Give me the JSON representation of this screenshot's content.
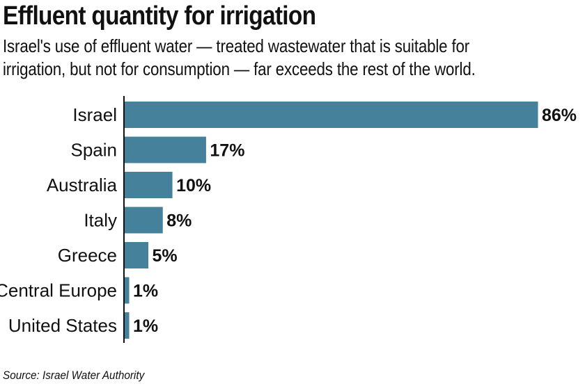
{
  "title": "Effluent quantity for irrigation",
  "subtitle_lines": [
    "Israel's use of effluent water — treated wastewater that is suitable for",
    "irrigation, but not for consumption — far exceeds the rest of the world."
  ],
  "source": "Source: Israel Water Authority",
  "colors": {
    "bar": "#45819a",
    "axis": "#111111",
    "text": "#111111"
  },
  "chart_data": {
    "type": "bar",
    "orientation": "horizontal",
    "title": "Effluent quantity for irrigation",
    "categories": [
      "Israel",
      "Spain",
      "Australia",
      "Italy",
      "Greece",
      "Central Europe",
      "United States"
    ],
    "values": [
      86,
      17,
      10,
      8,
      5,
      1,
      1
    ],
    "value_labels": [
      "86%",
      "17%",
      "10%",
      "8%",
      "5%",
      "1%",
      "1%"
    ],
    "xlim": [
      0,
      86
    ],
    "grid": false,
    "legend": "none"
  }
}
